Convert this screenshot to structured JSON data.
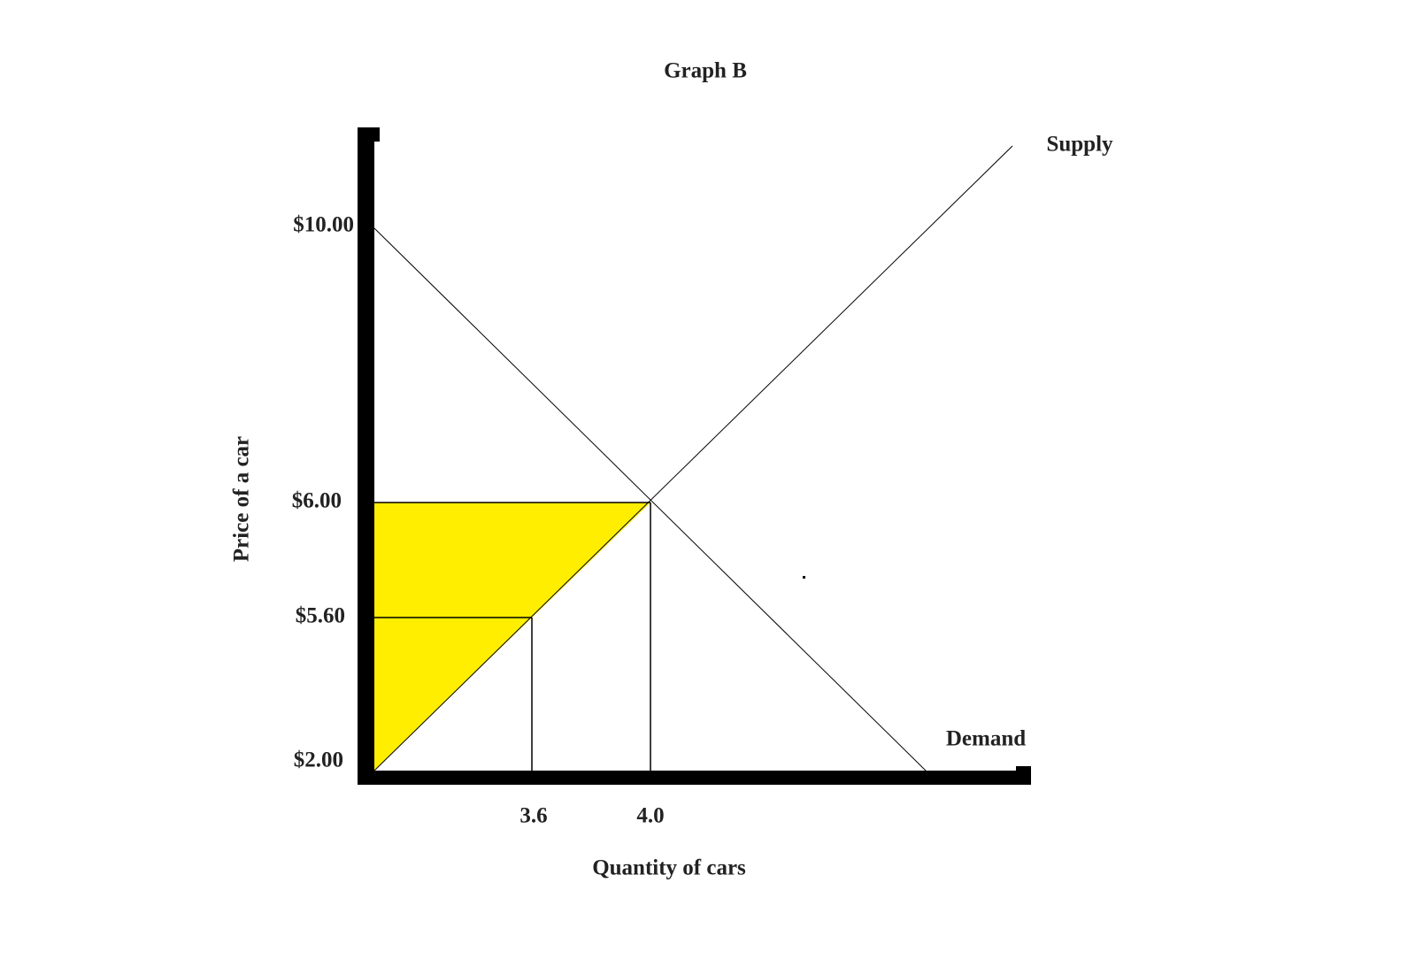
{
  "title": "Graph B",
  "y_axis": {
    "label": "Price of a car",
    "ticks": [
      "$10.00",
      "$6.00",
      "$5.60",
      "$2.00"
    ]
  },
  "x_axis": {
    "label": "Quantity of cars",
    "ticks": [
      "3.6",
      "4.0"
    ]
  },
  "curves": {
    "supply": "Supply",
    "demand": "Demand"
  }
}
